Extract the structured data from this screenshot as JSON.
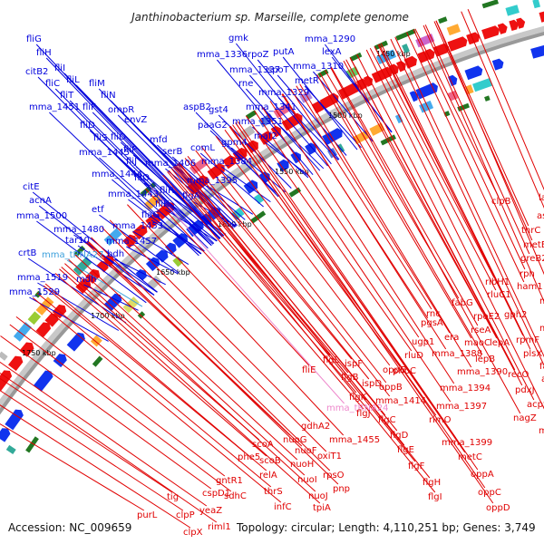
{
  "title": "Janthinobacterium sp. Marseille, complete genome",
  "footer": {
    "accession": "Accession: NC_009659",
    "info": "Topology: circular; Length: 4,110,251 bp; Genes: 3,749"
  },
  "colors": {
    "forward_label": "#0000dd",
    "reverse_label": "#e00000",
    "trna_forward": "#3ca0dc",
    "trna_reverse": "#ee88cc",
    "backbone": "#999999"
  },
  "scale_ticks": [
    "1450 kbp",
    "1500 kbp",
    "1550 kbp",
    "1600 kbp",
    "1650 kbp",
    "1700 kbp",
    "1750 kbp"
  ],
  "forward_labels": [
    "fliG",
    "fliH",
    "fliI",
    "citB2",
    "fliC",
    "fliL",
    "fliM",
    "fliT",
    "fliN",
    "mma_1451",
    "fliF",
    "ompR",
    "fliD",
    "envZ",
    "fliS",
    "fliO",
    "mfd",
    "mma_1445",
    "fliP",
    "serB",
    "fliJ",
    "mma_1406",
    "mma_1444",
    "fliQ",
    "fliR",
    "citE",
    "mma_1443",
    "fliK",
    "acnA",
    "etf",
    "flaG",
    "mma_1500",
    "mma_1453",
    "mma_1480",
    "tar10",
    "mma_1457",
    "crtB",
    "mma_tRNA27",
    "bdh",
    "mma_1519",
    "mdh",
    "mma_1529",
    "gmk",
    "rpoZ",
    "putA",
    "mma_1290",
    "mma_1336",
    "lexA",
    "mma_1337",
    "spoT",
    "mma_1310",
    "rne",
    "metR",
    "mma_1329",
    "aspB2",
    "gst4",
    "mma_1341",
    "paaG2",
    "mma_1351",
    "maf2",
    "comL",
    "gpm4",
    "mma_1384",
    "mma_1395",
    "flgA"
  ],
  "reverse_labels": [
    "last",
    "clpB",
    "aspB1",
    "thrC",
    "metE2",
    "greB2",
    "rph",
    "ham1",
    "ribH1",
    "rluC1",
    "mma_1342",
    "fabG",
    "rpoE2",
    "gph2",
    "mma_1349",
    "rnc",
    "rseA",
    "pgsA",
    "maoC",
    "rpmF",
    "lepA",
    "era",
    "plsX",
    "lepB",
    "fabH",
    "mma_1388",
    "acpP",
    "mma_1390",
    "recO",
    "mma_1394",
    "pdxJ",
    "acpS",
    "mma_1397",
    "nagZ",
    "mma_1389",
    "mma_1399",
    "ugp1",
    "rluD",
    "fliE",
    "ispF",
    "phbC",
    "flgL",
    "flgB",
    "oppE",
    "ispD",
    "oppB",
    "mma_tRNA24",
    "flgK",
    "mma_1414",
    "flgJ",
    "flgC",
    "rimO",
    "flgD",
    "flgE",
    "metC",
    "flgF",
    "oppA",
    "flgH",
    "oppC",
    "flgI",
    "oppD",
    "gdhA2",
    "mma_1455",
    "nuoG",
    "oxiT1",
    "nuoF",
    "nuoH",
    "scoA",
    "scoB",
    "rpsO",
    "phe5",
    "relA",
    "nuoI",
    "gntR1",
    "sdhC",
    "cspD1",
    "pnp",
    "nuoJ",
    "thrS",
    "tig",
    "yeaZ",
    "infC",
    "tpiA",
    "purL",
    "clpP",
    "clpX",
    "riml1"
  ]
}
